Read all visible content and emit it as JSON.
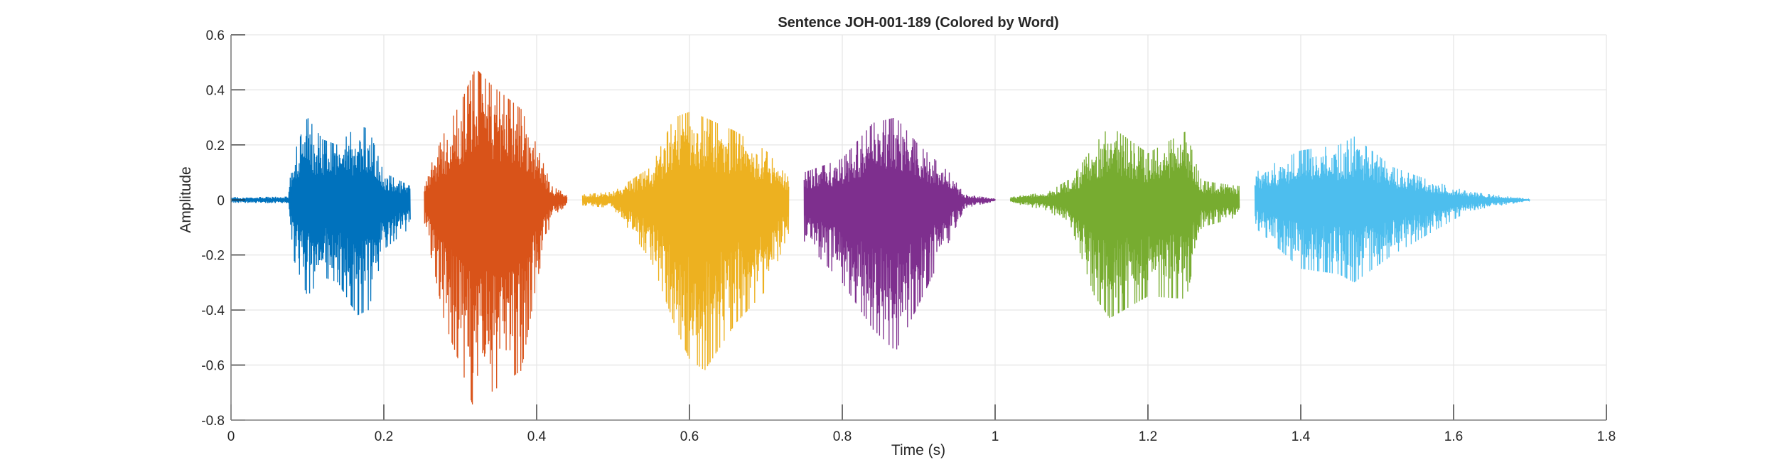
{
  "chart_data": {
    "type": "line",
    "title": "Sentence JOH-001-189 (Colored by Word)",
    "xlabel": "Time (s)",
    "ylabel": "Amplitude",
    "xlim": [
      0,
      1.8
    ],
    "ylim": [
      -0.8,
      0.6
    ],
    "xticks": [
      0,
      0.2,
      0.4,
      0.6,
      0.8,
      1,
      1.2,
      1.4,
      1.6,
      1.8
    ],
    "xtick_labels": [
      "0",
      "0.2",
      "0.4",
      "0.6",
      "0.8",
      "1",
      "1.2",
      "1.4",
      "1.6",
      "1.8"
    ],
    "yticks": [
      0.6,
      0.4,
      0.2,
      0,
      -0.2,
      -0.4,
      -0.6,
      -0.8
    ],
    "ytick_labels": [
      "0.6",
      "0.4",
      "0.2",
      "0",
      "-0.2",
      "-0.4",
      "-0.6",
      "-0.8"
    ],
    "grid": true,
    "series": [
      {
        "name": "word-1",
        "color": "#0072BD",
        "envelope": [
          [
            0,
            0.01,
            -0.01
          ],
          [
            0.075,
            0.012,
            -0.012
          ],
          [
            0.08,
            0.15,
            -0.2
          ],
          [
            0.1,
            0.3,
            -0.35
          ],
          [
            0.12,
            0.22,
            -0.28
          ],
          [
            0.14,
            0.2,
            -0.3
          ],
          [
            0.165,
            0.27,
            -0.42
          ],
          [
            0.18,
            0.26,
            -0.4
          ],
          [
            0.2,
            0.1,
            -0.18
          ],
          [
            0.235,
            0.05,
            -0.1
          ]
        ]
      },
      {
        "name": "word-2",
        "color": "#D95319",
        "envelope": [
          [
            0.253,
            0.07,
            -0.08
          ],
          [
            0.28,
            0.25,
            -0.45
          ],
          [
            0.3,
            0.35,
            -0.6
          ],
          [
            0.32,
            0.48,
            -0.78
          ],
          [
            0.34,
            0.42,
            -0.7
          ],
          [
            0.38,
            0.33,
            -0.62
          ],
          [
            0.4,
            0.2,
            -0.3
          ],
          [
            0.42,
            0.05,
            -0.06
          ],
          [
            0.44,
            0.02,
            -0.02
          ]
        ]
      },
      {
        "name": "word-3",
        "color": "#EDB120",
        "envelope": [
          [
            0.46,
            0.02,
            -0.02
          ],
          [
            0.5,
            0.03,
            -0.03
          ],
          [
            0.55,
            0.12,
            -0.22
          ],
          [
            0.58,
            0.3,
            -0.45
          ],
          [
            0.6,
            0.32,
            -0.58
          ],
          [
            0.62,
            0.3,
            -0.62
          ],
          [
            0.66,
            0.25,
            -0.45
          ],
          [
            0.7,
            0.18,
            -0.33
          ],
          [
            0.73,
            0.08,
            -0.12
          ]
        ]
      },
      {
        "name": "word-4",
        "color": "#7E2F8E",
        "envelope": [
          [
            0.75,
            0.1,
            -0.15
          ],
          [
            0.8,
            0.15,
            -0.3
          ],
          [
            0.84,
            0.28,
            -0.47
          ],
          [
            0.87,
            0.3,
            -0.55
          ],
          [
            0.9,
            0.2,
            -0.38
          ],
          [
            0.94,
            0.1,
            -0.15
          ],
          [
            0.96,
            0.02,
            -0.03
          ],
          [
            1.0,
            0.005,
            -0.005
          ]
        ]
      },
      {
        "name": "word-5",
        "color": "#77AC30",
        "envelope": [
          [
            1.02,
            0.01,
            -0.01
          ],
          [
            1.07,
            0.03,
            -0.04
          ],
          [
            1.1,
            0.08,
            -0.1
          ],
          [
            1.13,
            0.2,
            -0.35
          ],
          [
            1.15,
            0.27,
            -0.43
          ],
          [
            1.2,
            0.17,
            -0.35
          ],
          [
            1.25,
            0.25,
            -0.36
          ],
          [
            1.27,
            0.07,
            -0.1
          ],
          [
            1.32,
            0.05,
            -0.06
          ]
        ]
      },
      {
        "name": "word-6",
        "color": "#4DBEEE",
        "envelope": [
          [
            1.34,
            0.1,
            -0.1
          ],
          [
            1.4,
            0.18,
            -0.25
          ],
          [
            1.45,
            0.2,
            -0.27
          ],
          [
            1.47,
            0.23,
            -0.3
          ],
          [
            1.52,
            0.12,
            -0.2
          ],
          [
            1.57,
            0.07,
            -0.12
          ],
          [
            1.62,
            0.03,
            -0.04
          ],
          [
            1.7,
            0.003,
            -0.003
          ]
        ]
      }
    ]
  }
}
